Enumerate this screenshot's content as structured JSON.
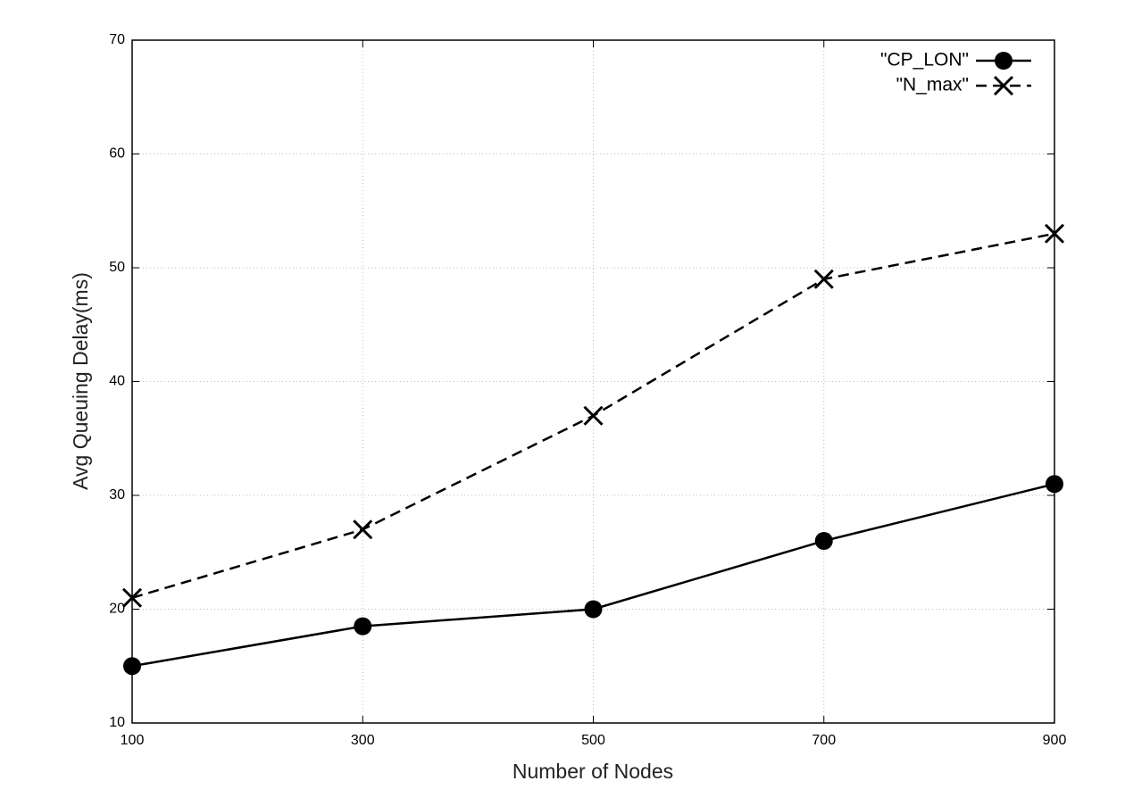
{
  "chart_data": {
    "type": "line",
    "x_label": "Number of Nodes",
    "y_label": "Avg Queuing Delay(ms)",
    "x": [
      100,
      300,
      500,
      700,
      900
    ],
    "series": [
      {
        "name": "\"CP_LON\"",
        "color": "#000000",
        "marker": "circle",
        "dashed": false,
        "values": [
          15,
          18.5,
          20,
          26,
          31
        ]
      },
      {
        "name": "\"N_max\"",
        "color": "#000000",
        "marker": "x",
        "dashed": true,
        "values": [
          21,
          27,
          37,
          49,
          53
        ]
      }
    ],
    "xlim": [
      100,
      900
    ],
    "xticks": [
      100,
      300,
      500,
      700,
      900
    ],
    "ylim": [
      10,
      70
    ],
    "yticks": [
      10,
      20,
      30,
      40,
      50,
      60,
      70
    ],
    "grid": true,
    "legend": "top-right"
  }
}
